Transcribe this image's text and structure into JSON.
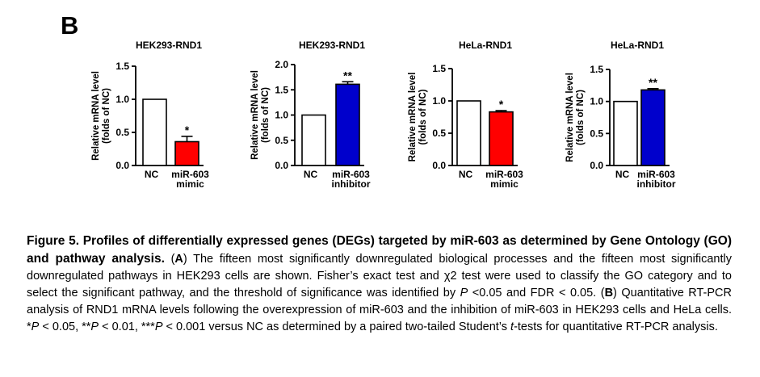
{
  "panel_label": "B",
  "y_axis_label_line1": "Relative mRNA level",
  "y_axis_label_line2": "(folds of NC)",
  "chart_data": [
    {
      "type": "bar",
      "title": "HEK293-RND1",
      "categories": [
        "NC",
        "miR-603 mimic"
      ],
      "category_lines": [
        [
          "NC"
        ],
        [
          "miR-603",
          "mimic"
        ]
      ],
      "values": [
        1.0,
        0.36
      ],
      "errors": [
        0,
        0.08
      ],
      "significance": [
        "",
        "*"
      ],
      "colors": [
        "#ffffff",
        "#ff0000"
      ],
      "yticks": [
        "0.0",
        "0.5",
        "1.0",
        "1.5"
      ],
      "ylim": [
        0,
        1.5
      ]
    },
    {
      "type": "bar",
      "title": "HEK293-RND1",
      "categories": [
        "NC",
        "miR-603 inhibitor"
      ],
      "category_lines": [
        [
          "NC"
        ],
        [
          "miR-603",
          "inhibitor"
        ]
      ],
      "values": [
        1.0,
        1.61
      ],
      "errors": [
        0,
        0.05
      ],
      "significance": [
        "",
        "**"
      ],
      "colors": [
        "#ffffff",
        "#0000cc"
      ],
      "yticks": [
        "0.0",
        "0.5",
        "1.0",
        "1.5",
        "2.0"
      ],
      "ylim": [
        0,
        2.0
      ]
    },
    {
      "type": "bar",
      "title": "HeLa-RND1",
      "categories": [
        "NC",
        "miR-603 mimic"
      ],
      "category_lines": [
        [
          "NC"
        ],
        [
          "miR-603",
          "mimic"
        ]
      ],
      "values": [
        1.0,
        0.83
      ],
      "errors": [
        0,
        0.02
      ],
      "significance": [
        "",
        "*"
      ],
      "colors": [
        "#ffffff",
        "#ff0000"
      ],
      "yticks": [
        "0.0",
        "0.5",
        "1.0",
        "1.5"
      ],
      "ylim": [
        0,
        1.5
      ]
    },
    {
      "type": "bar",
      "title": "HeLa-RND1",
      "categories": [
        "NC",
        "miR-603 inhibitor"
      ],
      "category_lines": [
        [
          "NC"
        ],
        [
          "miR-603",
          "inhibitor"
        ]
      ],
      "values": [
        1.0,
        1.18
      ],
      "errors": [
        0,
        0.02
      ],
      "significance": [
        "",
        "**"
      ],
      "colors": [
        "#ffffff",
        "#0000cc"
      ],
      "yticks": [
        "0.0",
        "0.5",
        "1.0",
        "1.5"
      ],
      "ylim": [
        0,
        1.5
      ]
    }
  ],
  "caption": {
    "lead": "Figure 5. Profiles of differentially expressed genes (DEGs) targeted by miR-603 as determined by Gene Ontology (GO) and pathway analysis.",
    "segments": [
      {
        "text": " (",
        "style": "normal"
      },
      {
        "text": "A",
        "style": "bold"
      },
      {
        "text": ") The fifteen most significantly downregulated biological processes and the fifteen most significantly downregulated pathways in HEK293 cells are shown. Fisher’s exact test and χ2 test were used to classify the GO category and to select the significant pathway, and the threshold of significance was identified by ",
        "style": "normal"
      },
      {
        "text": "P",
        "style": "italic"
      },
      {
        "text": " <0.05 and FDR < 0.05. (",
        "style": "normal"
      },
      {
        "text": "B",
        "style": "bold"
      },
      {
        "text": ") Quantitative RT-PCR analysis of RND1 mRNA levels following the overexpression of miR-603 and the inhibition of miR-603 in HEK293 cells and HeLa cells. *",
        "style": "normal"
      },
      {
        "text": "P",
        "style": "italic"
      },
      {
        "text": " < 0.05, **",
        "style": "normal"
      },
      {
        "text": "P",
        "style": "italic"
      },
      {
        "text": " < 0.01, ***",
        "style": "normal"
      },
      {
        "text": "P",
        "style": "italic"
      },
      {
        "text": " < 0.001 versus NC as determined by a paired two-tailed Student’s ",
        "style": "normal"
      },
      {
        "text": "t",
        "style": "italic"
      },
      {
        "text": "-tests for quantitative RT-PCR analysis.",
        "style": "normal"
      }
    ]
  }
}
